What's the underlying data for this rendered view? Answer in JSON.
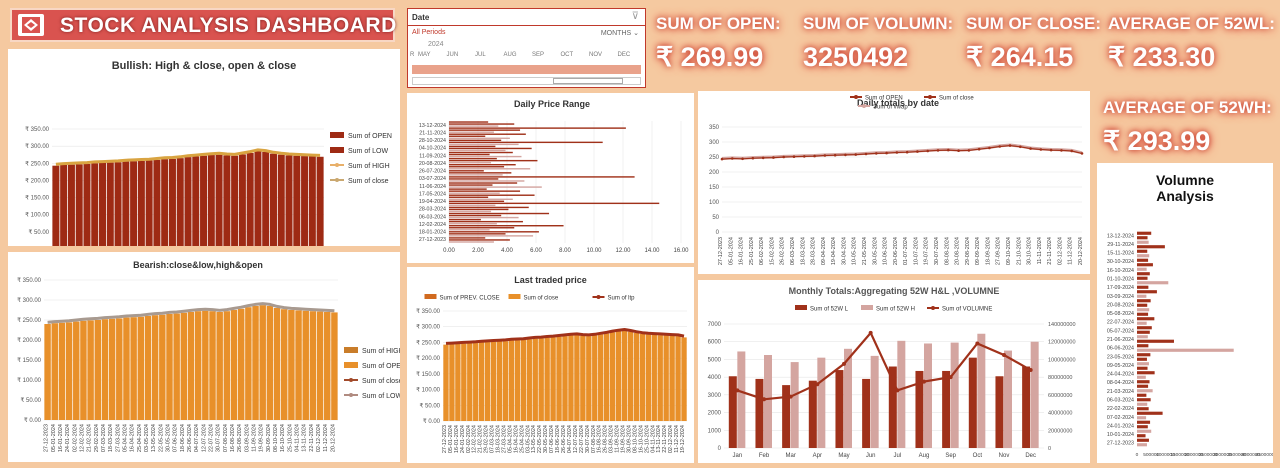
{
  "header": {
    "title": "STOCK ANALYSIS DASHBOARD"
  },
  "slicer": {
    "field": "Date",
    "all_periods": "All Periods",
    "unit": "MONTHS",
    "year": "2024",
    "months": [
      "R",
      "MAY",
      "JUN",
      "JUL",
      "AUG",
      "SEP",
      "OCT",
      "NOV",
      "DEC"
    ]
  },
  "kpis": [
    {
      "label": "SUM OF OPEN:",
      "value": "₹ 269.99"
    },
    {
      "label": "SUM OF VOLUMN:",
      "value": "3250492"
    },
    {
      "label": "SUM OF CLOSE:",
      "value": "₹ 264.15"
    },
    {
      "label": "AVERAGE OF 52WL:",
      "value": "₹ 233.30"
    },
    {
      "label": "AVERAGE OF 52WH:",
      "value": "₹ 293.99"
    }
  ],
  "colors": {
    "bg": "#f5c9a0",
    "dark_red": "#9e2a14",
    "orange": "#e8902a",
    "gold": "#d9a441",
    "pink": "#d4a5a0",
    "accent": "#c0392b"
  },
  "chart_data": [
    {
      "id": "bullish",
      "type": "bar",
      "title": "Bullish: High & close, open & close",
      "x_ticks": [
        "27-12-2023",
        "09-01-2024",
        "19-01-2024",
        "31-01-2024",
        "09-02-2024",
        "21-02-2024",
        "01-03-2024",
        "13-03-2024",
        "22-03-2024",
        "04-04-2024",
        "16-04-2024",
        "25-04-2024",
        "07-05-2024",
        "16-05-2024",
        "28-05-2024",
        "06-06-2024",
        "18-06-2024",
        "27-06-2024",
        "09-07-2024",
        "18-07-2024",
        "30-07-2024",
        "08-08-2024",
        "20-08-2024",
        "29-08-2024",
        "09-09-2024",
        "17-09-2024",
        "30-09-2024",
        "10-10-2024",
        "22-10-2024",
        "31-10-2024",
        "11-11-2024",
        "21-11-2024",
        "02-12-2024",
        "11-12-2024",
        "20-12-2024"
      ],
      "y_ticks": [
        "₹ 0.00",
        "₹ 50.00",
        "₹ 100.00",
        "₹ 150.00",
        "₹ 200.00",
        "₹ 250.00",
        "₹ 300.00",
        "₹ 350.00"
      ],
      "ylim": [
        0,
        350
      ],
      "legend": [
        "Sum of OPEN",
        "Sum of LOW",
        "Sum of HIGH",
        "Sum of close"
      ],
      "values": [
        243,
        245,
        246,
        247,
        248,
        250,
        251,
        252,
        253,
        255,
        256,
        257,
        258,
        260,
        262,
        263,
        265,
        268,
        270,
        272,
        274,
        275,
        273,
        272,
        276,
        280,
        285,
        283,
        278,
        275,
        273,
        272,
        271,
        270,
        269
      ]
    },
    {
      "id": "bearish",
      "type": "bar",
      "title": "Bearish:close&low,high&open",
      "x_ticks": [
        "27-12-2023",
        "05-01-2024",
        "16-01-2024",
        "24-01-2024",
        "02-02-2024",
        "12-02-2024",
        "21-02-2024",
        "29-02-2024",
        "07-03-2024",
        "18-03-2024",
        "27-03-2024",
        "05-04-2024",
        "16-04-2024",
        "25-04-2024",
        "03-05-2024",
        "13-05-2024",
        "22-05-2024",
        "30-05-2024",
        "07-06-2024",
        "18-06-2024",
        "26-06-2024",
        "04-07-2024",
        "12-07-2024",
        "22-07-2024",
        "30-07-2024",
        "07-08-2024",
        "16-08-2024",
        "26-08-2024",
        "03-09-2024",
        "11-09-2024",
        "19-09-2024",
        "30-09-2024",
        "08-10-2024",
        "16-10-2024",
        "25-10-2024",
        "04-11-2024",
        "13-11-2024",
        "22-11-2024",
        "02-12-2024",
        "11-12-2024",
        "20-12-2024"
      ],
      "y_ticks": [
        "₹ 0.00",
        "₹ 50.00",
        "₹ 100.00",
        "₹ 150.00",
        "₹ 200.00",
        "₹ 250.00",
        "₹ 300.00",
        "₹ 350.00"
      ],
      "ylim": [
        0,
        350
      ],
      "legend": [
        "Sum of HIGH",
        "Sum of OPEN",
        "Sum of close",
        "Sum of LOW"
      ],
      "values": [
        240,
        242,
        243,
        244,
        246,
        248,
        249,
        250,
        252,
        253,
        254,
        256,
        257,
        258,
        260,
        262,
        263,
        265,
        266,
        268,
        270,
        272,
        273,
        272,
        270,
        272,
        275,
        278,
        282,
        285,
        287,
        285,
        280,
        277,
        275,
        274,
        273,
        272,
        271,
        270,
        269
      ]
    },
    {
      "id": "daily_range",
      "type": "bar",
      "title": "Daily Price Range",
      "y_ticks": [
        "27-12-2023",
        "18-01-2024",
        "12-02-2024",
        "06-03-2024",
        "28-03-2024",
        "19-04-2024",
        "17-05-2024",
        "11-06-2024",
        "03-07-2024",
        "26-07-2024",
        "20-08-2024",
        "11-09-2024",
        "04-10-2024",
        "28-10-2024",
        "21-11-2024",
        "13-12-2024"
      ],
      "x_ticks": [
        "0.00",
        "2.00",
        "4.00",
        "6.00",
        "8.00",
        "10.00",
        "12.00",
        "14.00",
        "16.00"
      ],
      "xlim": [
        0,
        16
      ],
      "values": [
        3.1,
        4.2,
        2.5,
        5.8,
        3.9,
        6.2,
        2.8,
        4.5,
        7.9,
        3.3,
        5.1,
        2.2,
        4.8,
        3.6,
        6.9,
        2.9,
        4.1,
        5.5,
        3.2,
        14.5,
        3.8,
        4.4,
        2.7,
        5.9,
        3.5,
        4.9,
        2.6,
        6.4,
        3.0,
        4.7,
        5.2,
        3.4,
        12.8,
        3.7,
        4.3,
        2.4,
        5.6,
        3.8,
        4.6,
        2.9,
        6.1,
        3.3,
        5.0,
        2.8,
        4.4,
        3.9,
        5.7,
        3.2,
        4.8,
        10.6,
        3.6,
        4.2,
        2.5,
        5.3,
        3.1,
        4.9,
        12.2,
        3.4,
        4.5,
        2.7
      ]
    },
    {
      "id": "daily_totals",
      "type": "line",
      "title": "Daily totals by date",
      "legend": [
        "Sum of OPEN",
        "Sum of close",
        "Sum of vwap"
      ],
      "x_ticks": [
        "27-12-2023",
        "05-01-2024",
        "16-01-2024",
        "25-01-2024",
        "06-02-2024",
        "15-02-2024",
        "26-02-2024",
        "06-03-2024",
        "18-03-2024",
        "28-03-2024",
        "09-04-2024",
        "19-04-2024",
        "30-04-2024",
        "10-05-2024",
        "21-05-2024",
        "30-05-2024",
        "10-06-2024",
        "20-06-2024",
        "01-07-2024",
        "10-07-2024",
        "19-07-2024",
        "30-07-2024",
        "08-08-2024",
        "20-08-2024",
        "29-08-2024",
        "09-09-2024",
        "18-09-2024",
        "27-09-2024",
        "09-10-2024",
        "21-10-2024",
        "30-10-2024",
        "11-11-2024",
        "21-11-2024",
        "02-12-2024",
        "11-12-2024",
        "20-12-2024"
      ],
      "y_ticks": [
        "0",
        "50",
        "100",
        "150",
        "200",
        "250",
        "300",
        "350"
      ],
      "ylim": [
        0,
        350
      ],
      "values": [
        243,
        245,
        244,
        246,
        247,
        248,
        250,
        251,
        252,
        253,
        255,
        256,
        257,
        258,
        260,
        262,
        263,
        265,
        266,
        268,
        270,
        272,
        273,
        271,
        272,
        276,
        280,
        285,
        288,
        284,
        278,
        275,
        273,
        272,
        270,
        262
      ]
    },
    {
      "id": "last_traded",
      "type": "bar",
      "title": "Last traded price",
      "legend": [
        "Sum of PREV. CLOSE",
        "Sum of close",
        "Sum of ltp"
      ],
      "x_ticks": [
        "27-12-2023",
        "05-01-2024",
        "16-01-2024",
        "24-01-2024",
        "02-02-2024",
        "12-02-2024",
        "21-02-2024",
        "29-02-2024",
        "07-03-2024",
        "18-03-2024",
        "27-03-2024",
        "05-04-2024",
        "16-04-2024",
        "25-04-2024",
        "03-05-2024",
        "13-05-2024",
        "22-05-2024",
        "30-05-2024",
        "07-06-2024",
        "18-06-2024",
        "26-06-2024",
        "04-07-2024",
        "12-07-2024",
        "22-07-2024",
        "30-07-2024",
        "07-08-2024",
        "16-08-2024",
        "26-08-2024",
        "03-09-2024",
        "11-09-2024",
        "19-09-2024",
        "30-09-2024",
        "08-10-2024",
        "16-10-2024",
        "25-10-2024",
        "04-11-2024",
        "13-11-2024",
        "22-11-2024",
        "02-12-2024",
        "11-12-2024",
        "19-12-2024"
      ],
      "y_ticks": [
        "₹ 0.00",
        "₹ 50.00",
        "₹ 100.00",
        "₹ 150.00",
        "₹ 200.00",
        "₹ 250.00",
        "₹ 300.00",
        "₹ 350.00"
      ],
      "ylim": [
        0,
        350
      ],
      "values": [
        243,
        244,
        245,
        246,
        247,
        248,
        250,
        251,
        252,
        253,
        254,
        256,
        257,
        258,
        260,
        262,
        263,
        265,
        266,
        268,
        270,
        272,
        273,
        271,
        270,
        272,
        275,
        278,
        282,
        285,
        287,
        284,
        280,
        277,
        275,
        274,
        273,
        272,
        271,
        270,
        266
      ]
    },
    {
      "id": "monthly_totals",
      "type": "bar",
      "title": "Monthly Totals:Aggregating 52W H&L ,VOLUMNE",
      "legend": [
        "Sum of 52W L",
        "Sum of 52W H",
        "Sum of VOLUMNE"
      ],
      "categories": [
        "Jan",
        "Feb",
        "Mar",
        "Apr",
        "May",
        "Jun",
        "Jul",
        "Aug",
        "Sep",
        "Oct",
        "Nov",
        "Dec"
      ],
      "y_ticks": [
        "0",
        "1000",
        "2000",
        "3000",
        "4000",
        "5000",
        "6000",
        "7000"
      ],
      "y2_ticks": [
        "0",
        "20000000",
        "40000000",
        "60000000",
        "80000000",
        "100000000",
        "120000000",
        "140000000"
      ],
      "ylim": [
        0,
        7000
      ],
      "y2lim": [
        0,
        140000000
      ],
      "series": [
        {
          "name": "Sum of 52W L",
          "values": [
            4050,
            3900,
            3550,
            3800,
            4400,
            3900,
            4600,
            4350,
            4350,
            5100,
            4050,
            4600
          ]
        },
        {
          "name": "Sum of 52W H",
          "values": [
            5450,
            5250,
            4850,
            5100,
            5600,
            5200,
            6050,
            5900,
            5950,
            6450,
            5500,
            6000
          ]
        },
        {
          "name": "Sum of VOLUMNE",
          "values": [
            65000000,
            55000000,
            58000000,
            72000000,
            95000000,
            130000000,
            65000000,
            75000000,
            80000000,
            118000000,
            105000000,
            88000000
          ]
        }
      ]
    },
    {
      "id": "volume",
      "type": "bar",
      "title": "Volumne Analysis",
      "y_ticks": [
        "27-12-2023",
        "10-01-2024",
        "24-01-2024",
        "07-02-2024",
        "22-02-2024",
        "06-03-2024",
        "21-03-2024",
        "08-04-2024",
        "24-04-2024",
        "09-05-2024",
        "23-05-2024",
        "06-06-2024",
        "21-06-2024",
        "05-07-2024",
        "22-07-2024",
        "05-08-2024",
        "20-08-2024",
        "03-09-2024",
        "17-09-2024",
        "01-10-2024",
        "16-10-2024",
        "30-10-2024",
        "15-11-2024",
        "29-11-2024",
        "13-12-2024"
      ],
      "x_ticks": [
        "0",
        "500000",
        "1000000",
        "1500000",
        "2000000",
        "2500000",
        "3000000",
        "3500000",
        "4000000",
        "4500000"
      ],
      "xlim": [
        0,
        4500000
      ],
      "values": [
        350000,
        420000,
        300000,
        500000,
        380000,
        460000,
        320000,
        900000,
        410000,
        360000,
        480000,
        330000,
        550000,
        390000,
        440000,
        310000,
        620000,
        370000,
        420000,
        350000,
        470000,
        3400000,
        400000,
        1300000,
        380000,
        450000,
        520000,
        340000,
        610000,
        390000,
        430000,
        360000,
        480000,
        330000,
        700000,
        400000,
        1100000,
        370000,
        450000,
        340000,
        560000,
        390000,
        430000,
        360000,
        980000,
        410000,
        370000,
        500000
      ]
    }
  ]
}
